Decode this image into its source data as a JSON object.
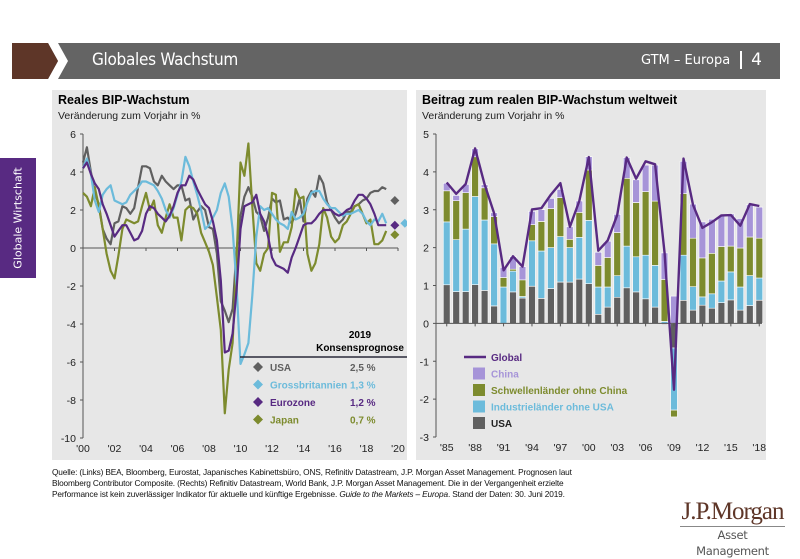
{
  "header": {
    "title": "Globales Wachstum",
    "section": "GTM – Europa",
    "page_number": "4",
    "colors": {
      "brand": "#5e3628",
      "bar": "#646464"
    }
  },
  "side_tab": {
    "label": "Globale Wirtschaft",
    "color": "#582a82"
  },
  "footer": {
    "source_line1": "Quelle: (Links) BEA, Bloomberg, Eurostat, Japanisches Kabinettsbüro, ONS, Refinitiv Datastream, J.P. Morgan Asset Management. Prognosen laut",
    "source_line2": "Bloomberg Contributor Composite. (Rechts) Refinitiv Datastream, World Bank, J.P. Morgan Asset Management. Die in der Vergangenheit erzielte",
    "source_line3a": "Performance ist kein zuverlässiger Indikator für aktuelle und künftige Ergebnisse. ",
    "source_line3b": "Guide to the Markets – Europa",
    "source_line3c": ". Stand der Daten: 30. Juni 2019."
  },
  "logo": {
    "name": "J.P.Morgan",
    "sub": "Asset Management"
  },
  "chart_data": [
    {
      "type": "line",
      "title": "Reales BIP-Wachstum",
      "subtitle": "Veränderung zum Vorjahr in %",
      "xlabel": "",
      "ylabel": "",
      "xlim": [
        2000,
        2020
      ],
      "ylim": [
        -10,
        6
      ],
      "yticks": [
        6,
        4,
        2,
        0,
        -2,
        -4,
        -6,
        -8,
        -10
      ],
      "xtick_labels": [
        "'00",
        "'02",
        "'04",
        "'06",
        "'08",
        "'10",
        "'12",
        "'14",
        "'16",
        "'18",
        "'20"
      ],
      "grid": false,
      "legend": {
        "position": "bottom-right",
        "header_line1": "2019",
        "header_line2": "Konsensprognose",
        "entries": [
          {
            "name": "USA",
            "value": "2,5 %",
            "color": "#606060"
          },
          {
            "name": "Grossbritannien",
            "value": "1,3 %",
            "color": "#6cbbdb"
          },
          {
            "name": "Eurozone",
            "value": "1,2 %",
            "color": "#582a82"
          },
          {
            "name": "Japan",
            "value": "0,7 %",
            "color": "#7d8b2e"
          }
        ]
      },
      "forecast_year": 2019.8,
      "series": [
        {
          "name": "USA",
          "color": "#606060",
          "forecast": 2.5,
          "x": [
            2000,
            2000.25,
            2000.5,
            2000.75,
            2001,
            2001.25,
            2001.5,
            2001.75,
            2002,
            2002.25,
            2002.5,
            2002.75,
            2003,
            2003.25,
            2003.5,
            2003.75,
            2004,
            2004.25,
            2004.5,
            2004.75,
            2005,
            2005.25,
            2005.5,
            2005.75,
            2006,
            2006.25,
            2006.5,
            2006.75,
            2007,
            2007.25,
            2007.5,
            2007.75,
            2008,
            2008.25,
            2008.5,
            2008.75,
            2009,
            2009.25,
            2009.5,
            2009.75,
            2010,
            2010.25,
            2010.5,
            2010.75,
            2011,
            2011.25,
            2011.5,
            2011.75,
            2012,
            2012.25,
            2012.5,
            2012.75,
            2013,
            2013.25,
            2013.5,
            2013.75,
            2014,
            2014.25,
            2014.5,
            2014.75,
            2015,
            2015.25,
            2015.5,
            2015.75,
            2016,
            2016.25,
            2016.5,
            2016.75,
            2017,
            2017.25,
            2017.5,
            2017.75,
            2018,
            2018.25,
            2018.5,
            2018.75,
            2019,
            2019.25
          ],
          "values": [
            4.5,
            5.3,
            4.0,
            2.9,
            2.3,
            1.0,
            0.5,
            0.2,
            1.3,
            1.4,
            2.2,
            2.1,
            1.8,
            2.1,
            3.2,
            4.3,
            4.3,
            4.2,
            3.5,
            3.3,
            3.8,
            3.5,
            3.3,
            3.1,
            3.3,
            3.3,
            2.5,
            2.6,
            1.5,
            1.9,
            2.2,
            2.0,
            1.1,
            1.0,
            -0.3,
            -2.8,
            -3.3,
            -3.9,
            -3.2,
            -0.1,
            1.7,
            2.7,
            3.2,
            2.7,
            1.9,
            1.7,
            0.9,
            1.6,
            2.6,
            2.4,
            2.5,
            1.5,
            1.6,
            1.3,
            1.8,
            2.6,
            1.4,
            2.6,
            3.0,
            2.7,
            3.8,
            3.4,
            2.4,
            2.0,
            1.6,
            1.3,
            1.5,
            1.9,
            1.9,
            2.2,
            2.3,
            2.5,
            2.6,
            2.9,
            3.0,
            3.0,
            3.2,
            3.1
          ]
        },
        {
          "name": "Grossbritannien",
          "color": "#6cbbdb",
          "forecast": 1.3,
          "x": [
            2000,
            2000.25,
            2000.5,
            2000.75,
            2001,
            2001.25,
            2001.5,
            2001.75,
            2002,
            2002.25,
            2002.5,
            2002.75,
            2003,
            2003.25,
            2003.5,
            2003.75,
            2004,
            2004.25,
            2004.5,
            2004.75,
            2005,
            2005.25,
            2005.5,
            2005.75,
            2006,
            2006.25,
            2006.5,
            2006.75,
            2007,
            2007.25,
            2007.5,
            2007.75,
            2008,
            2008.25,
            2008.5,
            2008.75,
            2009,
            2009.25,
            2009.5,
            2009.75,
            2010,
            2010.25,
            2010.5,
            2010.75,
            2011,
            2011.25,
            2011.5,
            2011.75,
            2012,
            2012.25,
            2012.5,
            2012.75,
            2013,
            2013.25,
            2013.5,
            2013.75,
            2014,
            2014.25,
            2014.5,
            2014.75,
            2015,
            2015.25,
            2015.5,
            2015.75,
            2016,
            2016.25,
            2016.5,
            2016.75,
            2017,
            2017.25,
            2017.5,
            2017.75,
            2018,
            2018.25,
            2018.5,
            2018.75,
            2019,
            2019.25
          ],
          "values": [
            4.2,
            4.7,
            3.9,
            2.5,
            1.9,
            2.8,
            3.1,
            3.3,
            2.5,
            2.4,
            2.3,
            2.4,
            2.8,
            3.0,
            3.2,
            3.5,
            3.5,
            3.4,
            3.3,
            3.0,
            2.6,
            2.0,
            1.6,
            2.1,
            2.8,
            3.5,
            4.8,
            4.3,
            3.5,
            2.8,
            2.0,
            1.0,
            1.2,
            1.6,
            2.0,
            2.9,
            3.4,
            2.7,
            1.0,
            -2.0,
            -6.1,
            -5.6,
            -5.0,
            -2.5,
            0.6,
            2.2,
            2.0,
            2.1,
            1.8,
            1.5,
            1.3,
            1.2,
            1.0,
            1.9,
            1.5,
            1.6,
            1.8,
            2.4,
            2.9,
            3.0,
            3.0,
            2.6,
            2.3,
            2.1,
            2.1,
            1.9,
            1.7,
            1.8,
            1.8,
            1.9,
            2.0,
            1.8,
            1.4,
            1.2,
            1.5,
            1.4,
            1.8,
            1.3
          ]
        },
        {
          "name": "Eurozone",
          "color": "#582a82",
          "forecast": 1.2,
          "x": [
            2000,
            2000.25,
            2000.5,
            2000.75,
            2001,
            2001.25,
            2001.5,
            2001.75,
            2002,
            2002.25,
            2002.5,
            2002.75,
            2003,
            2003.25,
            2003.5,
            2003.75,
            2004,
            2004.25,
            2004.5,
            2004.75,
            2005,
            2005.25,
            2005.5,
            2005.75,
            2006,
            2006.25,
            2006.5,
            2006.75,
            2007,
            2007.25,
            2007.5,
            2007.75,
            2008,
            2008.25,
            2008.5,
            2008.75,
            2009,
            2009.25,
            2009.5,
            2009.75,
            2010,
            2010.25,
            2010.5,
            2010.75,
            2011,
            2011.25,
            2011.5,
            2011.75,
            2012,
            2012.25,
            2012.5,
            2012.75,
            2013,
            2013.25,
            2013.5,
            2013.75,
            2014,
            2014.25,
            2014.5,
            2014.75,
            2015,
            2015.25,
            2015.5,
            2015.75,
            2016,
            2016.25,
            2016.5,
            2016.75,
            2017,
            2017.25,
            2017.5,
            2017.75,
            2018,
            2018.25,
            2018.5,
            2018.75,
            2019,
            2019.25
          ],
          "values": [
            4.2,
            4.5,
            3.9,
            3.4,
            3.1,
            2.3,
            1.8,
            1.2,
            0.6,
            0.9,
            1.2,
            1.2,
            0.8,
            0.4,
            0.5,
            0.9,
            1.8,
            2.2,
            2.1,
            1.8,
            1.6,
            1.4,
            1.7,
            2.2,
            2.9,
            3.3,
            3.3,
            3.8,
            3.6,
            3.1,
            2.7,
            2.3,
            2.1,
            1.4,
            0.4,
            -1.7,
            -5.5,
            -5.4,
            -4.5,
            -2.2,
            1.0,
            2.2,
            2.3,
            2.4,
            2.8,
            1.8,
            1.4,
            0.6,
            -0.5,
            -0.9,
            -1.0,
            -1.1,
            -1.3,
            -0.5,
            0.0,
            0.6,
            1.2,
            1.3,
            1.3,
            1.5,
            1.8,
            2.0,
            2.0,
            2.0,
            1.8,
            1.7,
            1.8,
            2.0,
            2.1,
            2.5,
            2.8,
            2.8,
            2.6,
            2.3,
            1.8,
            1.2,
            1.2,
            1.2
          ]
        },
        {
          "name": "Japan",
          "color": "#7d8b2e",
          "forecast": 0.7,
          "x": [
            2000,
            2000.25,
            2000.5,
            2000.75,
            2001,
            2001.25,
            2001.5,
            2001.75,
            2002,
            2002.25,
            2002.5,
            2002.75,
            2003,
            2003.25,
            2003.5,
            2003.75,
            2004,
            2004.25,
            2004.5,
            2004.75,
            2005,
            2005.25,
            2005.5,
            2005.75,
            2006,
            2006.25,
            2006.5,
            2006.75,
            2007,
            2007.25,
            2007.5,
            2007.75,
            2008,
            2008.25,
            2008.5,
            2008.75,
            2009,
            2009.25,
            2009.5,
            2009.75,
            2010,
            2010.25,
            2010.5,
            2010.75,
            2011,
            2011.25,
            2011.5,
            2011.75,
            2012,
            2012.25,
            2012.5,
            2012.75,
            2013,
            2013.25,
            2013.5,
            2013.75,
            2014,
            2014.25,
            2014.5,
            2014.75,
            2015,
            2015.25,
            2015.5,
            2015.75,
            2016,
            2016.25,
            2016.5,
            2016.75,
            2017,
            2017.25,
            2017.5,
            2017.75,
            2018,
            2018.25,
            2018.5,
            2018.75,
            2019,
            2019.25
          ],
          "values": [
            2.9,
            2.7,
            2.2,
            3.2,
            2.2,
            1.0,
            -0.3,
            -1.2,
            -1.6,
            -0.4,
            1.0,
            1.5,
            1.4,
            1.3,
            1.4,
            2.2,
            2.9,
            2.0,
            2.5,
            1.2,
            0.8,
            1.6,
            2.3,
            1.6,
            1.6,
            0.4,
            2.0,
            2.2,
            2.1,
            1.8,
            0.8,
            0.3,
            -0.2,
            -0.9,
            -2.6,
            -4.3,
            -8.7,
            -6.4,
            -5.0,
            -0.5,
            4.5,
            3.8,
            5.5,
            2.2,
            -0.8,
            -1.2,
            -0.3,
            0.0,
            2.9,
            2.8,
            -0.2,
            0.3,
            0.3,
            1.1,
            3.1,
            2.6,
            2.7,
            -0.3,
            -1.2,
            -0.8,
            0.2,
            2.1,
            1.6,
            0.6,
            0.3,
            0.5,
            1.2,
            1.4,
            1.8,
            2.2,
            2.3,
            1.8,
            1.3,
            1.5,
            0.2,
            0.2,
            0.4,
            0.9
          ]
        }
      ]
    },
    {
      "type": "bar",
      "stacked": true,
      "title": "Beitrag zum realen BIP-Wachstum weltweit",
      "subtitle": "Veränderung zum Vorjahr in %",
      "xlabel": "",
      "ylabel": "",
      "ylim": [
        -3,
        5
      ],
      "yticks": [
        5,
        4,
        3,
        2,
        1,
        0,
        -1,
        -2,
        -3
      ],
      "xtick_labels": [
        "'85",
        "'88",
        "'91",
        "'94",
        "'97",
        "'00",
        "'03",
        "'06",
        "'09",
        "'12",
        "'15",
        "'18"
      ],
      "grid": false,
      "legend": {
        "position": "bottom-left",
        "entries": [
          {
            "name": "Global",
            "kind": "line",
            "color": "#582a82"
          },
          {
            "name": "China",
            "kind": "box",
            "color": "#a694d8"
          },
          {
            "name": "Schwellenländer ohne China",
            "kind": "box",
            "color": "#7d8b2e"
          },
          {
            "name": "Industrieländer ohne USA",
            "kind": "box",
            "color": "#6cbbdb"
          },
          {
            "name": "USA",
            "kind": "box",
            "color": "#606060"
          }
        ]
      },
      "categories": [
        1985,
        1986,
        1987,
        1988,
        1989,
        1990,
        1991,
        1992,
        1993,
        1994,
        1995,
        1996,
        1997,
        1998,
        1999,
        2000,
        2001,
        2002,
        2003,
        2004,
        2005,
        2006,
        2007,
        2008,
        2009,
        2010,
        2011,
        2012,
        2013,
        2014,
        2015,
        2016,
        2017,
        2018
      ],
      "series": [
        {
          "name": "USA",
          "color": "#606060",
          "values": [
            1.02,
            0.84,
            0.84,
            1.02,
            0.87,
            0.46,
            -0.01,
            0.83,
            0.67,
            0.98,
            0.66,
            0.92,
            1.09,
            1.09,
            1.17,
            1.05,
            0.24,
            0.43,
            0.69,
            0.94,
            0.83,
            0.65,
            0.43,
            -0.03,
            -0.65,
            0.61,
            0.35,
            0.48,
            0.4,
            0.55,
            0.62,
            0.35,
            0.47,
            0.61
          ]
        },
        {
          "name": "Industrieländer ohne USA",
          "color": "#6cbbdb",
          "values": [
            1.66,
            1.37,
            1.65,
            2.33,
            1.86,
            1.64,
            0.96,
            0.55,
            0.04,
            1.2,
            1.25,
            1.08,
            1.2,
            0.91,
            1.1,
            1.67,
            0.72,
            0.53,
            0.57,
            1.1,
            0.93,
            1.15,
            1.1,
            0.05,
            -1.64,
            1.19,
            0.62,
            0.22,
            0.38,
            0.57,
            0.74,
            0.61,
            0.79,
            0.59
          ]
        },
        {
          "name": "Schwellenländer ohne China",
          "color": "#7d8b2e",
          "values": [
            0.82,
            1.03,
            0.96,
            1.05,
            0.85,
            0.72,
            0.25,
            0.05,
            0.44,
            0.43,
            0.78,
            1.03,
            1.03,
            0.22,
            0.66,
            1.33,
            0.57,
            0.78,
            1.14,
            1.79,
            1.43,
            1.68,
            1.7,
            1.11,
            -0.18,
            1.63,
            1.28,
            1.03,
            1.07,
            0.91,
            0.68,
            1.03,
            1.02,
            1.05
          ]
        },
        {
          "name": "China",
          "color": "#a694d8",
          "values": [
            0.2,
            0.14,
            0.22,
            0.21,
            0.08,
            0.1,
            0.27,
            0.33,
            0.35,
            0.35,
            0.31,
            0.27,
            0.22,
            0.33,
            0.3,
            0.35,
            0.35,
            0.43,
            0.48,
            0.55,
            0.6,
            0.7,
            0.95,
            0.7,
            0.72,
            0.85,
            0.9,
            0.95,
            0.9,
            0.8,
            0.85,
            0.78,
            0.85,
            0.82
          ]
        },
        {
          "name": "Global",
          "type": "line",
          "color": "#582a82",
          "values": [
            3.72,
            3.42,
            3.68,
            4.62,
            3.67,
            2.91,
            1.4,
            1.77,
            1.5,
            3.01,
            3.04,
            3.4,
            3.7,
            2.55,
            3.23,
            4.39,
            1.92,
            2.19,
            2.86,
            4.38,
            3.82,
            4.28,
            4.2,
            1.85,
            -1.75,
            4.35,
            3.13,
            2.52,
            2.67,
            2.85,
            2.86,
            2.58,
            3.15,
            3.1
          ]
        }
      ]
    }
  ]
}
